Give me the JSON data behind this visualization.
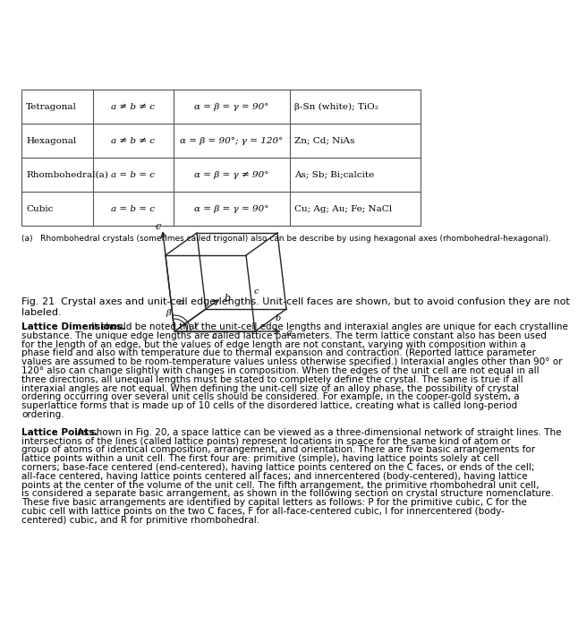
{
  "table_rows": [
    {
      "system": "Tetragonal",
      "axes": "a ≠ b ≠ c",
      "angles": "α = β = γ = 90°",
      "examples": "β-Sn (white); TiO₂"
    },
    {
      "system": "Hexagonal",
      "axes": "a ≠ b ≠ c",
      "angles": "α = β = 90°; γ = 120°",
      "examples": "Zn; Cd; NiAs"
    },
    {
      "system": "Rhombohedral(a)",
      "axes": "a = b = c",
      "angles": "α = β = γ ≠ 90°",
      "examples": "As; Sb; Bi;calcite"
    },
    {
      "system": "Cubic",
      "axes": "a = b = c",
      "angles": "α = β = γ = 90°",
      "examples": "Cu; Ag; Au; Fe; NaCl"
    }
  ],
  "footnote": "(a)   Rhombohedral crystals (sometimes called trigonal) also can be describe by using hexagonal axes (rhombohedral-hexagonal).",
  "fig_caption": "Fig. 21  Crystal axes and unit-cell edge lengths. Unit-cell faces are shown, but to avoid confusion they are not\nlabeled.",
  "lattice_dim_bold": "Lattice Dimensions.",
  "lattice_dim_text": " It should be noted that the unit-cell edge lengths and interaxial angles are unique for each crystalline substance. The unique edge lengths are called •lattice parameters•. The term •lattice constant• also has been used for the length of an edge, but the values of edge length are not constant, varying with composition within a phase field and also with temperature due to thermal expansion and contraction. (Reported lattice parameter values are assumed to be room-temperature values unless otherwise specified.) Interaxial angles other than 90° or 120° also can change slightly with changes in composition. When the edges of the unit cell are not equal in all three directions, all unequal lengths must be stated to completely define the crystal. The same is true if all interaxial angles are not equal. When defining the unit-cell size of an alloy phase, the possibility of crystal ordering occurring over several unit cells should be considered. For example, in the cooper-gold system, a superlattice forms that is made up of 10 cells of the disordered lattice, creating what is called •long-period ordering•.",
  "lattice_pts_bold": "Lattice Points.",
  "lattice_pts_text": " As shown in Fig. 20, a space lattice can be viewed as a three-dimensional network of straight lines. The intersections of the lines (called •lattice points•) represent locations in space for the same kind of atom or group of atoms of identical composition, arrangement, and orientation. There are five basic arrangements for lattice points within a unit cell. The first four are: primitive (simple), having lattice points solely at cell corners; base-face centered (end-centered), having lattice points centered on the •C• faces, or ends of the cell; all-face centered, having lattice points centered all faces; and innercentered (body-centered), having lattice points at the center of the volume of the unit cell. The fifth arrangement, the primitive rhombohedral unit cell, is considered a separate basic arrangement, as shown in the following section on crystal structure nomenclature. These five basic arrangements are identified by capital letters as follows: •P• for the primitive cubic, •C• for the cubic cell with lattice points on the two •C• faces, •F• for all-face-centered cubic, •I• for innercentered (body-centered) cubic, and •R• for primitive rhombohedral.",
  "bg_color": "#ffffff",
  "text_color": "#000000",
  "table_border_color": "#555555",
  "font_size_table": 7.5,
  "font_size_caption": 8.0,
  "font_size_body": 7.5
}
